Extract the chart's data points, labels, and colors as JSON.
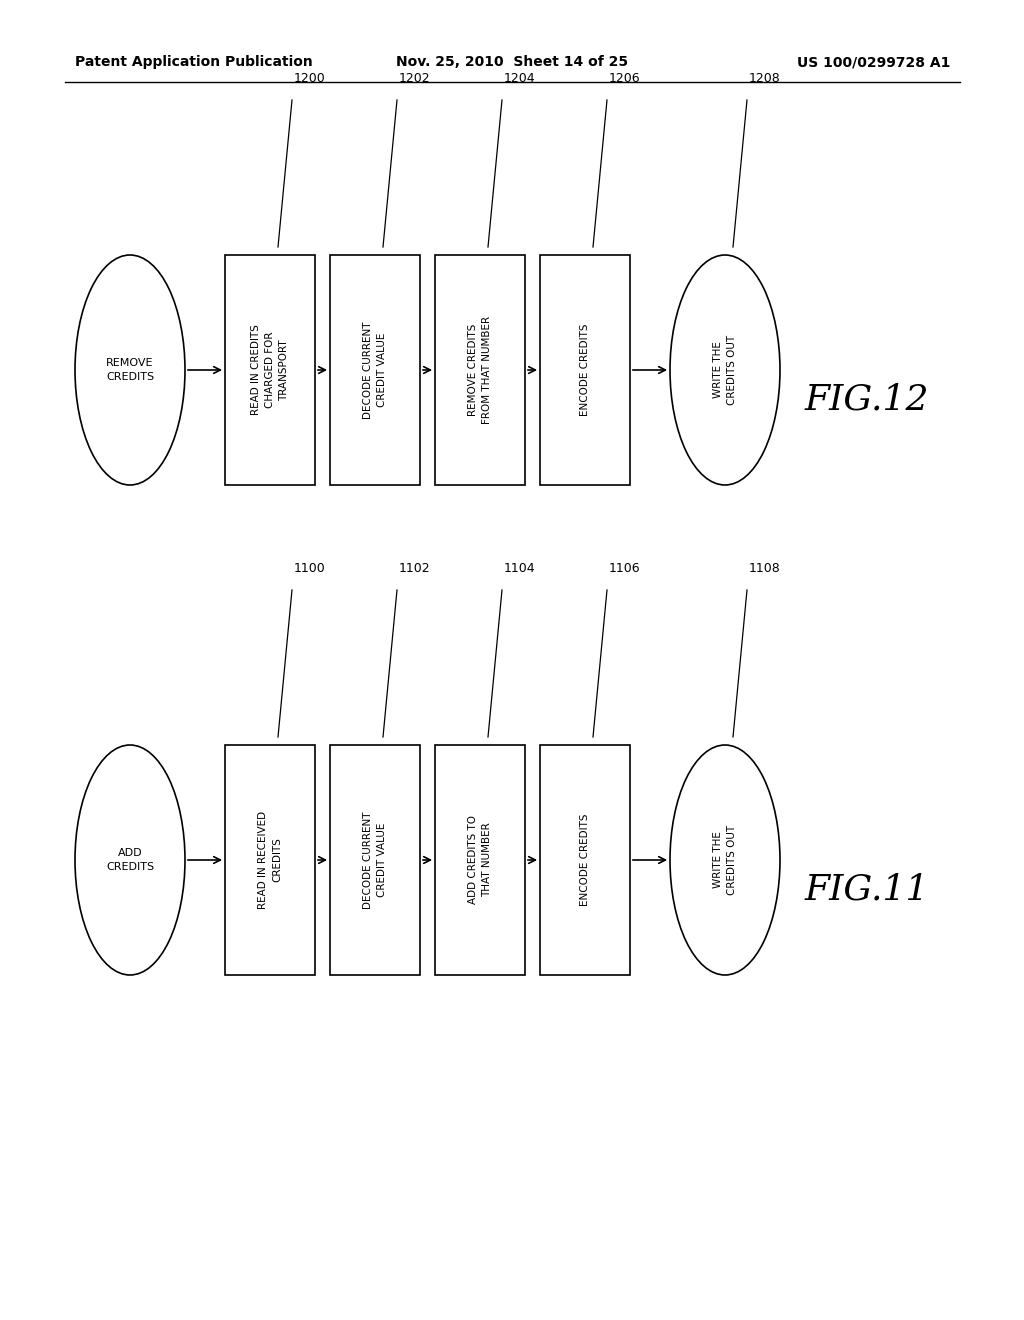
{
  "bg_color": "#ffffff",
  "header_left": "Patent Application Publication",
  "header_mid": "Nov. 25, 2010  Sheet 14 of 25",
  "header_right": "US 100/0299728 A1",
  "fig12": {
    "title": "FIG.12",
    "start_label": "REMOVE\nCREDITS",
    "end_label": "WRITE THE\nCREDITS OUT",
    "end_id": "1208",
    "boxes": [
      {
        "id": "1200",
        "text": "READ IN CREDITS\nCHARGED FOR\nTRANSPORT"
      },
      {
        "id": "1202",
        "text": "DECODE CURRENT\nCREDIT VALUE"
      },
      {
        "id": "1204",
        "text": "REMOVE CREDITS\nFROM THAT NUMBER"
      },
      {
        "id": "1206",
        "text": "ENCODE CREDITS"
      }
    ]
  },
  "fig11": {
    "title": "FIG.11",
    "start_label": "ADD\nCREDITS",
    "end_label": "WRITE THE\nCREDITS OUT",
    "end_id": "1108",
    "boxes": [
      {
        "id": "1100",
        "text": "READ IN RECEIVED\nCREDITS"
      },
      {
        "id": "1102",
        "text": "DECODE CURRENT\nCREDIT VALUE"
      },
      {
        "id": "1104",
        "text": "ADD CREDITS TO\nTHAT NUMBER"
      },
      {
        "id": "1106",
        "text": "ENCODE CREDITS"
      }
    ]
  }
}
